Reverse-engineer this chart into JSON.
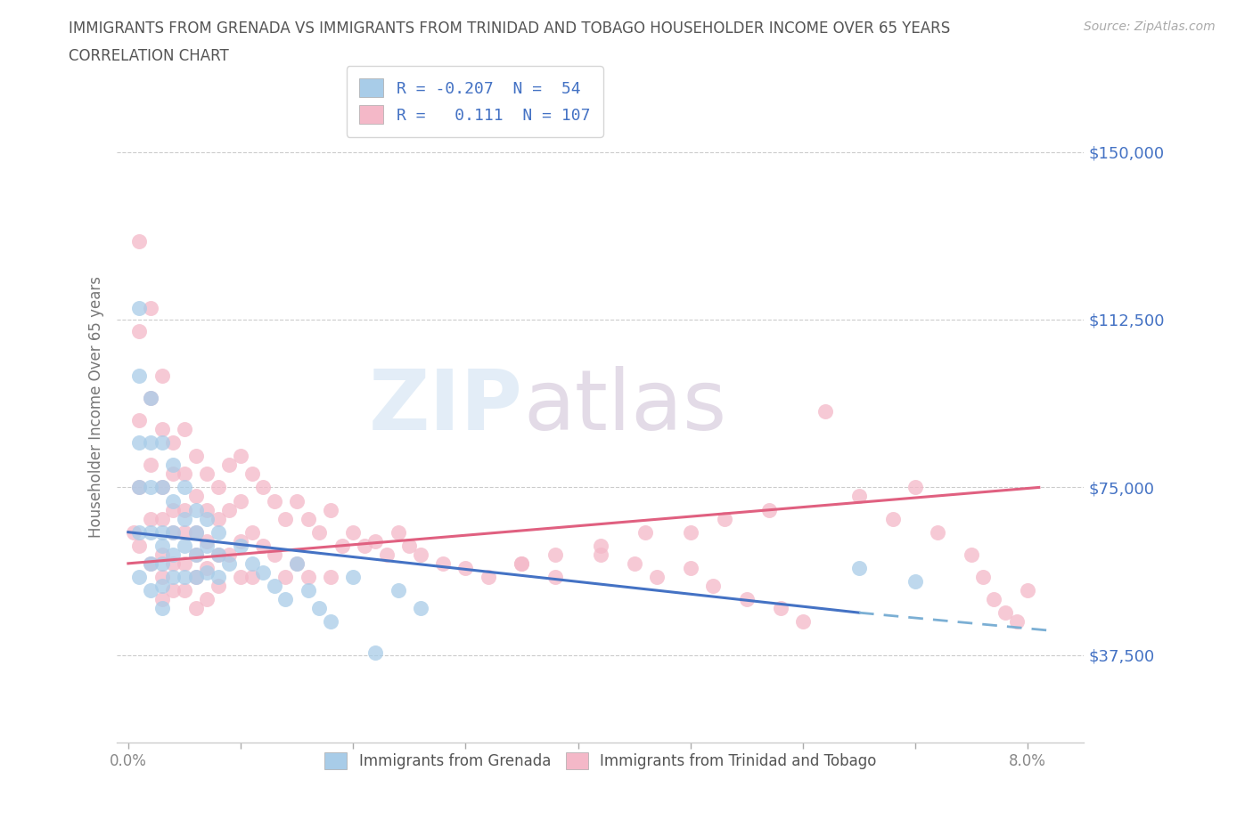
{
  "title_line1": "IMMIGRANTS FROM GRENADA VS IMMIGRANTS FROM TRINIDAD AND TOBAGO HOUSEHOLDER INCOME OVER 65 YEARS",
  "title_line2": "CORRELATION CHART",
  "source": "Source: ZipAtlas.com",
  "ylabel": "Householder Income Over 65 years",
  "xlim": [
    -0.001,
    0.085
  ],
  "ylim": [
    18000,
    168000
  ],
  "yticks": [
    37500,
    75000,
    112500,
    150000
  ],
  "ytick_labels": [
    "$37,500",
    "$75,000",
    "$112,500",
    "$150,000"
  ],
  "xticks": [
    0.0,
    0.01,
    0.02,
    0.03,
    0.04,
    0.05,
    0.06,
    0.07,
    0.08
  ],
  "xtick_labels_sparse": [
    "0.0%",
    "",
    "",
    "",
    "",
    "",
    "",
    "",
    "8.0%"
  ],
  "grid_color": "#cccccc",
  "background_color": "#ffffff",
  "color_grenada": "#a8cce8",
  "color_tt": "#f4b8c8",
  "line_color_grenada_solid": "#4472c4",
  "line_color_grenada_dash": "#7bafd4",
  "line_color_tt": "#e06080",
  "R_grenada": -0.207,
  "N_grenada": 54,
  "R_tt": 0.111,
  "N_tt": 107,
  "title_color": "#555555",
  "tick_label_color": "#4472c4",
  "watermark": "ZIPatlas",
  "legend_label_grenada": "R = -0.207  N =  54",
  "legend_label_tt": "R =   0.111  N = 107",
  "bottom_label_grenada": "Immigrants from Grenada",
  "bottom_label_tt": "Immigrants from Trinidad and Tobago",
  "grenada_x": [
    0.001,
    0.001,
    0.001,
    0.001,
    0.001,
    0.001,
    0.002,
    0.002,
    0.002,
    0.002,
    0.002,
    0.002,
    0.003,
    0.003,
    0.003,
    0.003,
    0.003,
    0.003,
    0.003,
    0.004,
    0.004,
    0.004,
    0.004,
    0.004,
    0.005,
    0.005,
    0.005,
    0.005,
    0.006,
    0.006,
    0.006,
    0.006,
    0.007,
    0.007,
    0.007,
    0.008,
    0.008,
    0.008,
    0.009,
    0.01,
    0.011,
    0.012,
    0.013,
    0.014,
    0.015,
    0.016,
    0.017,
    0.018,
    0.02,
    0.022,
    0.024,
    0.026,
    0.065,
    0.07
  ],
  "grenada_y": [
    115000,
    100000,
    85000,
    75000,
    65000,
    55000,
    95000,
    85000,
    75000,
    65000,
    58000,
    52000,
    85000,
    75000,
    65000,
    62000,
    58000,
    53000,
    48000,
    80000,
    72000,
    65000,
    60000,
    55000,
    75000,
    68000,
    62000,
    55000,
    70000,
    65000,
    60000,
    55000,
    68000,
    62000,
    56000,
    65000,
    60000,
    55000,
    58000,
    62000,
    58000,
    56000,
    53000,
    50000,
    58000,
    52000,
    48000,
    45000,
    55000,
    38000,
    52000,
    48000,
    57000,
    54000
  ],
  "tt_x": [
    0.0005,
    0.001,
    0.001,
    0.001,
    0.001,
    0.001,
    0.002,
    0.002,
    0.002,
    0.002,
    0.002,
    0.003,
    0.003,
    0.003,
    0.003,
    0.003,
    0.003,
    0.003,
    0.004,
    0.004,
    0.004,
    0.004,
    0.004,
    0.004,
    0.005,
    0.005,
    0.005,
    0.005,
    0.005,
    0.005,
    0.006,
    0.006,
    0.006,
    0.006,
    0.006,
    0.006,
    0.007,
    0.007,
    0.007,
    0.007,
    0.007,
    0.008,
    0.008,
    0.008,
    0.008,
    0.009,
    0.009,
    0.009,
    0.01,
    0.01,
    0.01,
    0.01,
    0.011,
    0.011,
    0.011,
    0.012,
    0.012,
    0.013,
    0.013,
    0.014,
    0.014,
    0.015,
    0.015,
    0.016,
    0.016,
    0.017,
    0.018,
    0.018,
    0.019,
    0.02,
    0.021,
    0.022,
    0.023,
    0.024,
    0.025,
    0.026,
    0.028,
    0.03,
    0.032,
    0.035,
    0.038,
    0.042,
    0.046,
    0.05,
    0.053,
    0.057,
    0.062,
    0.065,
    0.068,
    0.07,
    0.072,
    0.075,
    0.076,
    0.077,
    0.078,
    0.079,
    0.08,
    0.035,
    0.038,
    0.042,
    0.045,
    0.047,
    0.05,
    0.052,
    0.055,
    0.058,
    0.06
  ],
  "tt_y": [
    65000,
    130000,
    110000,
    90000,
    75000,
    62000,
    115000,
    95000,
    80000,
    68000,
    58000,
    100000,
    88000,
    75000,
    68000,
    60000,
    55000,
    50000,
    85000,
    78000,
    70000,
    65000,
    58000,
    52000,
    88000,
    78000,
    70000,
    65000,
    58000,
    52000,
    82000,
    73000,
    65000,
    60000,
    55000,
    48000,
    78000,
    70000,
    63000,
    57000,
    50000,
    75000,
    68000,
    60000,
    53000,
    80000,
    70000,
    60000,
    82000,
    72000,
    63000,
    55000,
    78000,
    65000,
    55000,
    75000,
    62000,
    72000,
    60000,
    68000,
    55000,
    72000,
    58000,
    68000,
    55000,
    65000,
    70000,
    55000,
    62000,
    65000,
    62000,
    63000,
    60000,
    65000,
    62000,
    60000,
    58000,
    57000,
    55000,
    58000,
    60000,
    62000,
    65000,
    65000,
    68000,
    70000,
    92000,
    73000,
    68000,
    75000,
    65000,
    60000,
    55000,
    50000,
    47000,
    45000,
    52000,
    58000,
    55000,
    60000,
    58000,
    55000,
    57000,
    53000,
    50000,
    48000,
    45000
  ]
}
